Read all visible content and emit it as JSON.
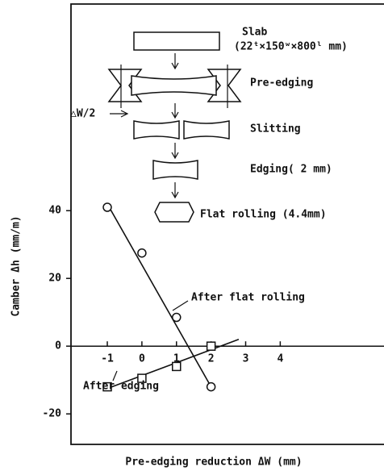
{
  "chart_data": {
    "type": "scatter",
    "xlabel": "Pre-edging reduction  ΔW (mm)",
    "ylabel": "Camber  Δh (mm/m)",
    "xlim": [
      -2.05,
      7
    ],
    "ylim": [
      -29,
      101
    ],
    "xticks": [
      -1,
      0,
      1,
      2,
      3,
      4
    ],
    "yticks": [
      -20,
      0,
      20,
      40
    ],
    "series": [
      {
        "name": "After flat rolling",
        "marker": "circle",
        "color": "#111111",
        "x": [
          -1,
          0,
          1,
          2
        ],
        "values": [
          41,
          27.5,
          8.5,
          -12
        ],
        "fit": {
          "x": [
            -1,
            2
          ],
          "y": [
            42,
            -12
          ]
        }
      },
      {
        "name": "After edging",
        "marker": "square",
        "color": "#111111",
        "x": [
          -1,
          0,
          1,
          2
        ],
        "values": [
          -12,
          -9.5,
          -6,
          0
        ],
        "fit": {
          "x": [
            -1,
            2.8
          ],
          "y": [
            -12.5,
            2
          ]
        }
      }
    ]
  },
  "diagram": {
    "slab": "Slab",
    "slab_size": "(22ᵗ×150ʷ×800ˡ mm)",
    "pre_edging": "Pre-edging",
    "delta": "△W/2",
    "slitting": "Slitting",
    "edging": "Edging( 2 mm)",
    "flat_rolling": "Flat rolling (4.4mm)"
  }
}
